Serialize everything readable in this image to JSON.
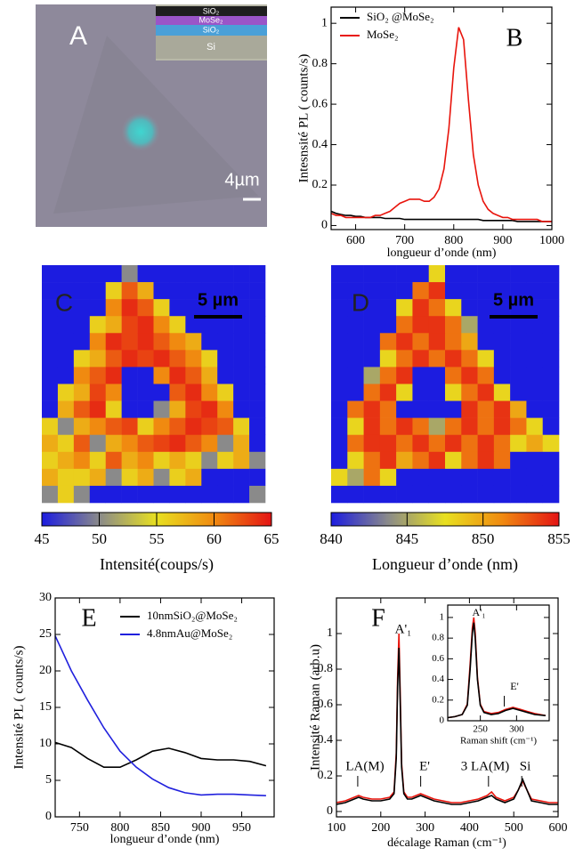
{
  "panel_a": {
    "label": "A",
    "scale_bar": "4µm",
    "layers": [
      "SiO₂",
      "MoSe₂",
      "SiO₂",
      "Si"
    ]
  },
  "chart_data": [
    {
      "type": "line",
      "panel": "B",
      "xlabel": "longueur d’onde (nm)",
      "ylabel": "Intesnsité PL ( counts/s)",
      "xlim": [
        550,
        1000
      ],
      "ylim": [
        -0.02,
        1.08
      ],
      "xticks": [
        600,
        700,
        800,
        900,
        1000
      ],
      "yticks": [
        0,
        0.2,
        0.4,
        0.6,
        0.8,
        1
      ],
      "x": [
        550,
        560,
        570,
        580,
        590,
        600,
        610,
        620,
        630,
        640,
        650,
        660,
        670,
        680,
        690,
        700,
        710,
        720,
        730,
        740,
        750,
        760,
        770,
        780,
        790,
        800,
        810,
        820,
        830,
        840,
        850,
        860,
        870,
        880,
        890,
        900,
        910,
        920,
        930,
        940,
        950,
        960,
        970,
        980,
        990,
        1000
      ],
      "series": [
        {
          "name": "SiO₂ @MoSe₂",
          "color": "#000000",
          "values": [
            0.07,
            0.06,
            0.055,
            0.05,
            0.05,
            0.045,
            0.045,
            0.04,
            0.04,
            0.04,
            0.04,
            0.035,
            0.035,
            0.035,
            0.035,
            0.03,
            0.03,
            0.03,
            0.03,
            0.03,
            0.03,
            0.03,
            0.03,
            0.03,
            0.03,
            0.03,
            0.03,
            0.03,
            0.03,
            0.03,
            0.03,
            0.025,
            0.025,
            0.025,
            0.025,
            0.025,
            0.025,
            0.025,
            0.02,
            0.02,
            0.02,
            0.02,
            0.02,
            0.02,
            0.02,
            0.02
          ]
        },
        {
          "name": "MoSe₂",
          "color": "#e8140c",
          "values": [
            0.06,
            0.05,
            0.05,
            0.04,
            0.04,
            0.04,
            0.04,
            0.04,
            0.04,
            0.05,
            0.05,
            0.06,
            0.07,
            0.09,
            0.11,
            0.12,
            0.13,
            0.13,
            0.13,
            0.12,
            0.12,
            0.14,
            0.18,
            0.28,
            0.48,
            0.78,
            0.98,
            0.92,
            0.62,
            0.35,
            0.2,
            0.12,
            0.08,
            0.06,
            0.05,
            0.04,
            0.04,
            0.03,
            0.03,
            0.03,
            0.03,
            0.03,
            0.03,
            0.02,
            0.02,
            0.02
          ]
        }
      ]
    },
    {
      "type": "heatmap",
      "panel": "C",
      "scale_bar": "5 µm",
      "colorbar_label": "Intensité(coups/s)",
      "zlim": [
        45,
        65
      ],
      "zticks": [
        45,
        50,
        55,
        60,
        65
      ],
      "colorscale": [
        "#1c1ce0",
        "#8a8a8a",
        "#e8e020",
        "#f08a10",
        "#e41414"
      ],
      "z": [
        [
          45,
          45,
          45,
          45,
          45,
          50,
          45,
          45,
          45,
          45,
          45,
          45,
          45,
          45
        ],
        [
          45,
          45,
          45,
          45,
          56,
          62,
          58,
          45,
          45,
          45,
          45,
          45,
          45,
          45
        ],
        [
          45,
          45,
          45,
          45,
          60,
          64,
          62,
          56,
          45,
          45,
          45,
          45,
          45,
          45
        ],
        [
          45,
          45,
          45,
          56,
          58,
          63,
          64,
          60,
          56,
          45,
          45,
          45,
          45,
          45
        ],
        [
          45,
          45,
          45,
          60,
          64,
          63,
          64,
          62,
          60,
          58,
          45,
          45,
          45,
          45
        ],
        [
          45,
          45,
          56,
          58,
          62,
          64,
          63,
          64,
          62,
          60,
          56,
          45,
          45,
          45
        ],
        [
          45,
          45,
          60,
          62,
          64,
          45,
          45,
          60,
          64,
          62,
          58,
          45,
          45,
          45
        ],
        [
          45,
          56,
          58,
          63,
          60,
          45,
          45,
          45,
          62,
          64,
          60,
          56,
          45,
          45
        ],
        [
          45,
          58,
          62,
          64,
          56,
          45,
          45,
          50,
          58,
          63,
          64,
          60,
          45,
          45
        ],
        [
          56,
          50,
          58,
          60,
          62,
          63,
          56,
          60,
          62,
          64,
          63,
          62,
          56,
          45
        ],
        [
          58,
          56,
          62,
          50,
          58,
          60,
          62,
          63,
          64,
          62,
          60,
          50,
          58,
          45
        ],
        [
          56,
          58,
          60,
          56,
          62,
          58,
          60,
          56,
          58,
          56,
          50,
          56,
          58,
          50
        ],
        [
          58,
          56,
          56,
          58,
          50,
          56,
          58,
          50,
          56,
          58,
          45,
          45,
          45,
          45
        ],
        [
          50,
          56,
          50,
          45,
          45,
          45,
          45,
          45,
          45,
          45,
          45,
          45,
          45,
          50
        ]
      ]
    },
    {
      "type": "heatmap",
      "panel": "D",
      "scale_bar": "5 µm",
      "colorbar_label": "Longueur d’onde (nm)",
      "zlim": [
        840,
        855
      ],
      "zticks": [
        840,
        845,
        850,
        855
      ],
      "colorscale": [
        "#1c1ce0",
        "#8a8a8a",
        "#e8e020",
        "#f08a10",
        "#e41414"
      ],
      "z": [
        [
          840,
          840,
          840,
          840,
          840,
          840,
          848,
          840,
          840,
          840,
          840,
          840,
          840,
          840
        ],
        [
          840,
          840,
          840,
          840,
          840,
          852,
          854,
          840,
          840,
          840,
          840,
          840,
          840,
          840
        ],
        [
          840,
          840,
          840,
          840,
          848,
          854,
          852,
          848,
          840,
          840,
          840,
          840,
          840,
          840
        ],
        [
          840,
          840,
          840,
          840,
          852,
          854,
          854,
          852,
          845,
          840,
          840,
          840,
          840,
          840
        ],
        [
          840,
          840,
          840,
          852,
          854,
          852,
          854,
          852,
          850,
          840,
          840,
          840,
          840,
          840
        ],
        [
          840,
          840,
          840,
          848,
          852,
          854,
          852,
          854,
          852,
          848,
          840,
          840,
          840,
          840
        ],
        [
          840,
          840,
          845,
          852,
          854,
          840,
          840,
          852,
          854,
          852,
          840,
          840,
          840,
          840
        ],
        [
          840,
          840,
          852,
          854,
          848,
          840,
          840,
          848,
          852,
          854,
          848,
          840,
          840,
          840
        ],
        [
          840,
          852,
          854,
          852,
          840,
          840,
          840,
          840,
          854,
          852,
          854,
          850,
          840,
          840
        ],
        [
          840,
          848,
          854,
          852,
          854,
          852,
          845,
          852,
          854,
          852,
          854,
          852,
          848,
          840
        ],
        [
          840,
          852,
          854,
          854,
          852,
          854,
          852,
          854,
          852,
          854,
          852,
          848,
          850,
          848
        ],
        [
          840,
          848,
          852,
          854,
          850,
          852,
          854,
          848,
          852,
          854,
          852,
          840,
          840,
          840
        ],
        [
          848,
          845,
          852,
          848,
          840,
          840,
          840,
          840,
          840,
          840,
          840,
          840,
          840,
          840
        ],
        [
          840,
          840,
          840,
          840,
          840,
          840,
          840,
          840,
          840,
          840,
          840,
          840,
          840,
          840
        ]
      ]
    },
    {
      "type": "line",
      "panel": "E",
      "xlabel": "longueur d’onde (nm)",
      "ylabel": "Intensité PL ( counts/s)",
      "xlim": [
        720,
        990
      ],
      "ylim": [
        0,
        30
      ],
      "xticks": [
        750,
        800,
        850,
        900,
        950
      ],
      "yticks": [
        0,
        5,
        10,
        15,
        20,
        25,
        30
      ],
      "x": [
        720,
        740,
        760,
        780,
        800,
        820,
        840,
        860,
        880,
        900,
        920,
        940,
        960,
        980
      ],
      "series": [
        {
          "name": "10nmSiO₂@MoSe₂",
          "color": "#000000",
          "values": [
            10.2,
            9.5,
            8,
            6.8,
            6.8,
            7.8,
            9,
            9.4,
            8.8,
            8,
            7.8,
            7.8,
            7.6,
            7
          ]
        },
        {
          "name": "4.8nmAu@MoSe₂",
          "color": "#2020dd",
          "values": [
            24.8,
            20,
            16,
            12.2,
            9,
            6.8,
            5.2,
            4,
            3.3,
            3,
            3.1,
            3.1,
            3,
            2.9
          ]
        }
      ]
    },
    {
      "type": "line",
      "panel": "F",
      "xlabel": "décalage Raman (cm⁻¹)",
      "ylabel": "Intensité Raman (arb.u)",
      "xlim": [
        100,
        600
      ],
      "ylim": [
        -0.03,
        1.2
      ],
      "xticks": [
        100,
        200,
        300,
        400,
        500,
        600
      ],
      "yticks": [
        0,
        0.2,
        0.4,
        0.6,
        0.8,
        1
      ],
      "annotations": [
        "A'₁",
        "LA(M)",
        "E'",
        "3 LA(M)",
        "Si"
      ],
      "x": [
        100,
        120,
        140,
        150,
        160,
        180,
        200,
        220,
        230,
        235,
        238,
        241,
        244,
        247,
        252,
        260,
        270,
        280,
        290,
        300,
        320,
        340,
        360,
        380,
        400,
        420,
        440,
        450,
        460,
        480,
        500,
        510,
        520,
        530,
        540,
        560,
        580,
        600
      ],
      "series": [
        {
          "color": "#e8140c",
          "values": [
            0.05,
            0.06,
            0.08,
            0.09,
            0.08,
            0.07,
            0.07,
            0.08,
            0.11,
            0.33,
            0.75,
            1.0,
            0.65,
            0.27,
            0.11,
            0.08,
            0.08,
            0.09,
            0.1,
            0.09,
            0.07,
            0.06,
            0.05,
            0.05,
            0.06,
            0.07,
            0.09,
            0.11,
            0.08,
            0.06,
            0.08,
            0.12,
            0.17,
            0.12,
            0.07,
            0.06,
            0.05,
            0.05
          ]
        },
        {
          "color": "#000000",
          "values": [
            0.04,
            0.05,
            0.07,
            0.08,
            0.07,
            0.06,
            0.06,
            0.07,
            0.1,
            0.3,
            0.7,
            0.92,
            0.6,
            0.25,
            0.1,
            0.07,
            0.07,
            0.08,
            0.09,
            0.08,
            0.06,
            0.05,
            0.04,
            0.04,
            0.05,
            0.06,
            0.08,
            0.09,
            0.07,
            0.05,
            0.07,
            0.12,
            0.18,
            0.12,
            0.06,
            0.05,
            0.04,
            0.04
          ]
        }
      ]
    },
    {
      "type": "line",
      "xlabel": "Raman shift (cm⁻¹)",
      "annotations": [
        "A'₁",
        "E'"
      ],
      "xlim": [
        205,
        345
      ],
      "ylim": [
        0,
        1.12
      ],
      "xticks": [
        250,
        300
      ],
      "yticks": [
        0,
        0.2,
        0.4,
        0.6,
        0.8,
        1
      ],
      "x": [
        205,
        215,
        225,
        232,
        236,
        239,
        241,
        243,
        246,
        250,
        255,
        265,
        275,
        285,
        295,
        305,
        315,
        325,
        340
      ],
      "series": [
        {
          "color": "#e8140c",
          "values": [
            0.03,
            0.04,
            0.06,
            0.16,
            0.55,
            0.9,
            1.0,
            0.85,
            0.42,
            0.16,
            0.09,
            0.07,
            0.08,
            0.11,
            0.13,
            0.11,
            0.09,
            0.07,
            0.05
          ]
        },
        {
          "color": "#000000",
          "values": [
            0.03,
            0.04,
            0.06,
            0.15,
            0.5,
            0.85,
            0.95,
            0.8,
            0.4,
            0.15,
            0.08,
            0.06,
            0.07,
            0.1,
            0.12,
            0.1,
            0.08,
            0.06,
            0.05
          ]
        }
      ]
    }
  ]
}
